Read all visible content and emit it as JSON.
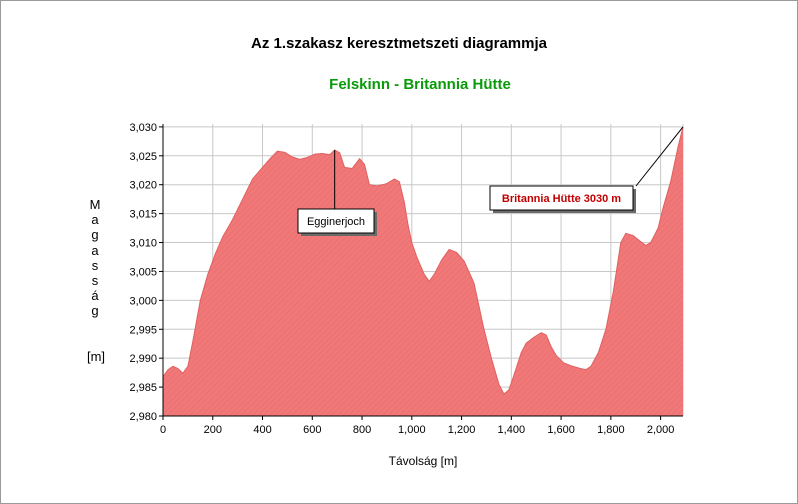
{
  "chart_data": {
    "type": "area",
    "title": "Az 1.szakasz keresztmetszeti diagrammja",
    "subtitle": "Felskinn - Britannia Hütte",
    "xlabel": "Távolság [m]",
    "ylabel_letters": [
      "M",
      "a",
      "g",
      "a",
      "s",
      "s",
      "á",
      "g"
    ],
    "ylabel_unit": "[m]",
    "xlim": [
      0,
      2090
    ],
    "ylim": [
      2980,
      3030.5
    ],
    "x_ticks": [
      {
        "v": 0,
        "label": "0"
      },
      {
        "v": 200,
        "label": "200"
      },
      {
        "v": 400,
        "label": "400"
      },
      {
        "v": 600,
        "label": "600"
      },
      {
        "v": 800,
        "label": "800"
      },
      {
        "v": 1000,
        "label": "1,000"
      },
      {
        "v": 1200,
        "label": "1,200"
      },
      {
        "v": 1400,
        "label": "1,400"
      },
      {
        "v": 1600,
        "label": "1,600"
      },
      {
        "v": 1800,
        "label": "1,800"
      },
      {
        "v": 2000,
        "label": "2,000"
      }
    ],
    "y_ticks": [
      {
        "v": 2980,
        "label": "2,980"
      },
      {
        "v": 2985,
        "label": "2,985"
      },
      {
        "v": 2990,
        "label": "2,990"
      },
      {
        "v": 2995,
        "label": "2,995"
      },
      {
        "v": 3000,
        "label": "3,000"
      },
      {
        "v": 3005,
        "label": "3,005"
      },
      {
        "v": 3010,
        "label": "3,010"
      },
      {
        "v": 3015,
        "label": "3,015"
      },
      {
        "v": 3020,
        "label": "3,020"
      },
      {
        "v": 3025,
        "label": "3,025"
      },
      {
        "v": 3030,
        "label": "3,030"
      }
    ],
    "grid": true,
    "fill_color": "#f07878",
    "line_color": "#e06060",
    "points": [
      [
        0,
        2986.8
      ],
      [
        20,
        2988.0
      ],
      [
        40,
        2988.6
      ],
      [
        60,
        2988.2
      ],
      [
        80,
        2987.4
      ],
      [
        100,
        2988.6
      ],
      [
        120,
        2993.0
      ],
      [
        150,
        3000.0
      ],
      [
        180,
        3004.5
      ],
      [
        210,
        3008.0
      ],
      [
        240,
        3011.0
      ],
      [
        280,
        3014.0
      ],
      [
        320,
        3017.5
      ],
      [
        360,
        3021.0
      ],
      [
        400,
        3023.0
      ],
      [
        430,
        3024.5
      ],
      [
        460,
        3025.8
      ],
      [
        490,
        3025.6
      ],
      [
        520,
        3024.8
      ],
      [
        550,
        3024.4
      ],
      [
        580,
        3024.7
      ],
      [
        610,
        3025.3
      ],
      [
        640,
        3025.4
      ],
      [
        670,
        3025.2
      ],
      [
        690,
        3026.0
      ],
      [
        710,
        3025.5
      ],
      [
        730,
        3023.0
      ],
      [
        760,
        3022.8
      ],
      [
        790,
        3024.5
      ],
      [
        810,
        3023.5
      ],
      [
        830,
        3020.0
      ],
      [
        860,
        3019.8
      ],
      [
        900,
        3020.2
      ],
      [
        930,
        3021.0
      ],
      [
        950,
        3020.5
      ],
      [
        970,
        3017.0
      ],
      [
        985,
        3013.0
      ],
      [
        1000,
        3010.0
      ],
      [
        1020,
        3007.5
      ],
      [
        1050,
        3004.5
      ],
      [
        1070,
        3003.3
      ],
      [
        1090,
        3004.5
      ],
      [
        1120,
        3007.0
      ],
      [
        1150,
        3008.8
      ],
      [
        1180,
        3008.3
      ],
      [
        1210,
        3006.8
      ],
      [
        1250,
        3003.0
      ],
      [
        1290,
        2995.0
      ],
      [
        1320,
        2990.0
      ],
      [
        1350,
        2985.5
      ],
      [
        1370,
        2983.8
      ],
      [
        1390,
        2984.5
      ],
      [
        1410,
        2987.0
      ],
      [
        1440,
        2991.0
      ],
      [
        1460,
        2992.6
      ],
      [
        1490,
        2993.6
      ],
      [
        1520,
        2994.4
      ],
      [
        1540,
        2994.0
      ],
      [
        1560,
        2992.0
      ],
      [
        1580,
        2990.5
      ],
      [
        1610,
        2989.2
      ],
      [
        1640,
        2988.7
      ],
      [
        1670,
        2988.3
      ],
      [
        1700,
        2988.0
      ],
      [
        1720,
        2988.6
      ],
      [
        1750,
        2991.0
      ],
      [
        1780,
        2995.0
      ],
      [
        1810,
        3001.5
      ],
      [
        1840,
        3010.0
      ],
      [
        1860,
        3011.6
      ],
      [
        1890,
        3011.2
      ],
      [
        1910,
        3010.5
      ],
      [
        1940,
        3009.5
      ],
      [
        1960,
        3010.0
      ],
      [
        1990,
        3012.5
      ],
      [
        2010,
        3016.0
      ],
      [
        2040,
        3020.5
      ],
      [
        2070,
        3026.5
      ],
      [
        2090,
        3030.0
      ]
    ],
    "annotations": [
      {
        "label": "Egginerjoch",
        "x": 690,
        "y": 3026.0,
        "style": "normal"
      },
      {
        "label": "Britannia Hütte 3030 m",
        "x": 2090,
        "y": 3030.0,
        "style": "red"
      }
    ]
  }
}
